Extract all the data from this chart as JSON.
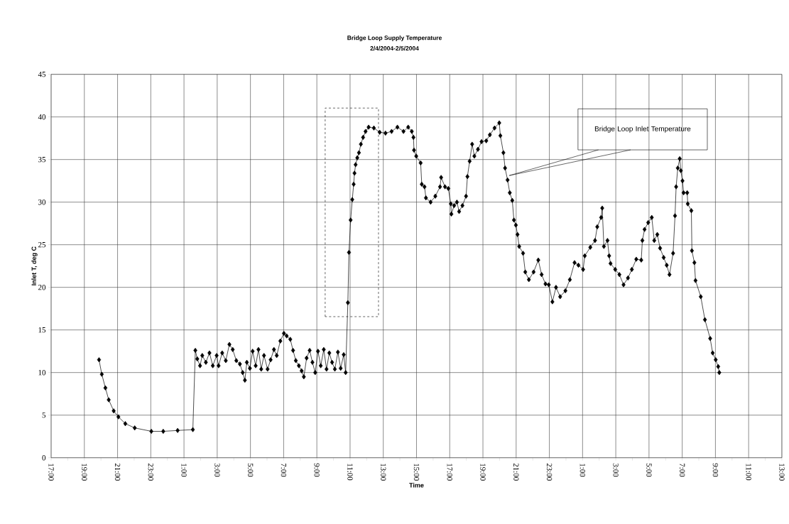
{
  "chart_data": {
    "type": "line",
    "title": "Bridge Loop Supply Temperature",
    "subtitle": "2/4/2004-2/5/2004",
    "xlabel": "Time",
    "ylabel": "Inlet T, deg C",
    "x": [
      "2004-02-04T19:53",
      "2004-02-04T20:03",
      "2004-02-04T20:16",
      "2004-02-04T20:28",
      "2004-02-04T20:46",
      "2004-02-04T21:03",
      "2004-02-04T21:28",
      "2004-02-04T22:02",
      "2004-02-04T23:02",
      "2004-02-04T23:45",
      "2004-02-05T00:37",
      "2004-02-05T01:32",
      "2004-02-05T01:41",
      "2004-02-05T01:48",
      "2004-02-05T01:58",
      "2004-02-05T02:06",
      "2004-02-05T02:19",
      "2004-02-05T02:32",
      "2004-02-05T02:44",
      "2004-02-05T02:58",
      "2004-02-05T03:05",
      "2004-02-05T03:18",
      "2004-02-05T03:31",
      "2004-02-05T03:44",
      "2004-02-05T03:56",
      "2004-02-05T04:09",
      "2004-02-05T04:22",
      "2004-02-05T04:32",
      "2004-02-05T04:40",
      "2004-02-05T04:47",
      "2004-02-05T04:58",
      "2004-02-05T05:08",
      "2004-02-05T05:19",
      "2004-02-05T05:29",
      "2004-02-05T05:39",
      "2004-02-05T05:49",
      "2004-02-05T06:02",
      "2004-02-05T06:13",
      "2004-02-05T06:25",
      "2004-02-05T06:35",
      "2004-02-05T06:48",
      "2004-02-05T07:01",
      "2004-02-05T07:11",
      "2004-02-05T07:24",
      "2004-02-05T07:34",
      "2004-02-05T07:44",
      "2004-02-05T07:55",
      "2004-02-05T08:05",
      "2004-02-05T08:13",
      "2004-02-05T08:23",
      "2004-02-05T08:34",
      "2004-02-05T08:44",
      "2004-02-05T08:54",
      "2004-02-05T09:04",
      "2004-02-05T09:14",
      "2004-02-05T09:25",
      "2004-02-05T09:35",
      "2004-02-05T09:45",
      "2004-02-05T09:55",
      "2004-02-05T10:05",
      "2004-02-05T10:16",
      "2004-02-05T10:26",
      "2004-02-05T10:37",
      "2004-02-05T10:44",
      "2004-02-05T10:52",
      "2004-02-05T10:56",
      "2004-02-05T11:02",
      "2004-02-05T11:08",
      "2004-02-05T11:13",
      "2004-02-05T11:16",
      "2004-02-05T11:20",
      "2004-02-05T11:26",
      "2004-02-05T11:32",
      "2004-02-05T11:39",
      "2004-02-05T11:47",
      "2004-02-05T11:56",
      "2004-02-05T12:07",
      "2004-02-05T12:26",
      "2004-02-05T12:47",
      "2004-02-05T13:08",
      "2004-02-05T13:30",
      "2004-02-05T13:51",
      "2004-02-05T14:13",
      "2004-02-05T14:30",
      "2004-02-05T14:43",
      "2004-02-05T14:49",
      "2004-02-05T14:51",
      "2004-02-05T14:59",
      "2004-02-05T15:15",
      "2004-02-05T15:19",
      "2004-02-05T15:29",
      "2004-02-05T15:34",
      "2004-02-05T15:51",
      "2004-02-05T16:08",
      "2004-02-05T16:25",
      "2004-02-05T16:29",
      "2004-02-05T16:43",
      "2004-02-05T16:55",
      "2004-02-05T17:04",
      "2004-02-05T17:06",
      "2004-02-05T17:16",
      "2004-02-05T17:26",
      "2004-02-05T17:34",
      "2004-02-05T17:46",
      "2004-02-05T17:59",
      "2004-02-05T18:04",
      "2004-02-05T18:12",
      "2004-02-05T18:21",
      "2004-02-05T18:29",
      "2004-02-05T18:42",
      "2004-02-05T18:55",
      "2004-02-05T19:12",
      "2004-02-05T19:25",
      "2004-02-05T19:42",
      "2004-02-05T19:59",
      "2004-02-05T20:03",
      "2004-02-05T20:14",
      "2004-02-05T20:20",
      "2004-02-05T20:29",
      "2004-02-05T20:37",
      "2004-02-05T20:46",
      "2004-02-05T20:52",
      "2004-02-05T20:59",
      "2004-02-05T21:05",
      "2004-02-05T21:11",
      "2004-02-05T21:25",
      "2004-02-05T21:33",
      "2004-02-05T21:46",
      "2004-02-05T22:03",
      "2004-02-05T22:20",
      "2004-02-05T22:32",
      "2004-02-05T22:46",
      "2004-02-05T22:58",
      "2004-02-05T23:11",
      "2004-02-05T23:24",
      "2004-02-05T23:39",
      "2004-02-05T23:58",
      "2004-02-06T00:14",
      "2004-02-06T00:31",
      "2004-02-06T00:45",
      "2004-02-06T01:02",
      "2004-02-06T01:08",
      "2004-02-06T01:28",
      "2004-02-06T01:45",
      "2004-02-06T01:53",
      "2004-02-06T02:07",
      "2004-02-06T02:11",
      "2004-02-06T02:17",
      "2004-02-06T02:30",
      "2004-02-06T02:36",
      "2004-02-06T02:41",
      "2004-02-06T02:58",
      "2004-02-06T03:13",
      "2004-02-06T03:28",
      "2004-02-06T03:44",
      "2004-02-06T03:58",
      "2004-02-06T04:14",
      "2004-02-06T04:32",
      "2004-02-06T04:36",
      "2004-02-06T04:44",
      "2004-02-06T04:57",
      "2004-02-06T05:10",
      "2004-02-06T05:19",
      "2004-02-06T05:30",
      "2004-02-06T05:40",
      "2004-02-06T05:53",
      "2004-02-06T06:04",
      "2004-02-06T06:14",
      "2004-02-06T06:27",
      "2004-02-06T06:34",
      "2004-02-06T06:38",
      "2004-02-06T06:44",
      "2004-02-06T06:51",
      "2004-02-06T06:55",
      "2004-02-06T07:01",
      "2004-02-06T07:05",
      "2004-02-06T07:18",
      "2004-02-06T07:20",
      "2004-02-06T07:33",
      "2004-02-06T07:35",
      "2004-02-06T07:44",
      "2004-02-06T07:48",
      "2004-02-06T08:07",
      "2004-02-06T08:22",
      "2004-02-06T08:41",
      "2004-02-06T08:50",
      "2004-02-06T09:01",
      "2004-02-06T09:10",
      "2004-02-06T09:14"
    ],
    "series": [
      {
        "color": "#000000",
        "values": [
          11.5,
          9.8,
          8.2,
          6.8,
          5.5,
          4.8,
          4.0,
          3.5,
          3.1,
          3.1,
          3.2,
          3.3,
          12.6,
          11.6,
          10.8,
          12.0,
          11.2,
          12.3,
          10.8,
          12.0,
          10.8,
          12.3,
          11.4,
          13.3,
          12.7,
          11.4,
          11.0,
          10.0,
          9.1,
          11.2,
          10.5,
          12.5,
          10.8,
          12.7,
          10.4,
          12.0,
          10.4,
          11.5,
          12.7,
          12.0,
          13.7,
          14.6,
          14.3,
          13.9,
          12.6,
          11.4,
          10.8,
          10.2,
          9.5,
          11.7,
          12.6,
          11.2,
          10.0,
          12.5,
          10.8,
          12.7,
          10.4,
          12.3,
          11.2,
          10.4,
          12.4,
          10.5,
          12.1,
          10.0,
          18.2,
          24.1,
          27.9,
          30.3,
          32.1,
          33.4,
          34.4,
          35.2,
          35.8,
          36.8,
          37.6,
          38.3,
          38.8,
          38.7,
          38.2,
          38.1,
          38.3,
          38.8,
          38.3,
          38.8,
          38.3,
          37.6,
          36.1,
          35.4,
          34.6,
          32.1,
          31.8,
          30.5,
          30.0,
          30.7,
          31.8,
          32.9,
          31.8,
          31.6,
          29.8,
          28.6,
          29.6,
          30.0,
          28.9,
          29.6,
          30.7,
          33.0,
          34.8,
          36.8,
          35.4,
          36.2,
          37.1,
          37.2,
          37.9,
          38.7,
          39.3,
          37.8,
          35.8,
          34.0,
          32.6,
          31.1,
          30.2,
          27.9,
          27.3,
          26.2,
          24.8,
          24.0,
          21.8,
          20.9,
          21.8,
          23.2,
          21.5,
          20.4,
          20.3,
          18.3,
          20.0,
          18.9,
          19.6,
          20.9,
          22.9,
          22.6,
          22.1,
          23.7,
          24.7,
          25.5,
          27.1,
          28.2,
          29.3,
          24.8,
          25.5,
          23.7,
          22.8,
          22.1,
          21.5,
          20.3,
          21.1,
          22.1,
          23.3,
          23.2,
          25.5,
          26.8,
          27.6,
          28.2,
          25.5,
          26.2,
          24.6,
          23.5,
          22.6,
          21.5,
          24.0,
          28.4,
          31.8,
          34.0,
          35.1,
          33.7,
          32.5,
          31.1,
          31.1,
          29.8,
          29.0,
          24.3,
          22.9,
          20.8,
          18.9,
          16.2,
          14.0,
          12.3,
          11.5,
          10.7,
          10.0
        ]
      }
    ],
    "marker": "diamond",
    "line_style": "solid",
    "grid": true,
    "xlim": [
      "2004-02-04T17:00",
      "2004-02-06T13:00"
    ],
    "xticks": [
      {
        "value": "2004-02-04T17:00",
        "label": "17:00"
      },
      {
        "value": "2004-02-04T18:00",
        "label": null
      },
      {
        "value": "2004-02-04T19:00",
        "label": "19:00"
      },
      {
        "value": "2004-02-04T20:00",
        "label": null
      },
      {
        "value": "2004-02-04T21:00",
        "label": "21:00"
      },
      {
        "value": "2004-02-04T22:00",
        "label": null
      },
      {
        "value": "2004-02-04T23:00",
        "label": "23:00"
      },
      {
        "value": "2004-02-05T00:00",
        "label": null
      },
      {
        "value": "2004-02-05T01:00",
        "label": "1:00"
      },
      {
        "value": "2004-02-05T02:00",
        "label": null
      },
      {
        "value": "2004-02-05T03:00",
        "label": "3:00"
      },
      {
        "value": "2004-02-05T04:00",
        "label": null
      },
      {
        "value": "2004-02-05T05:00",
        "label": "5:00"
      },
      {
        "value": "2004-02-05T06:00",
        "label": null
      },
      {
        "value": "2004-02-05T07:00",
        "label": "7:00"
      },
      {
        "value": "2004-02-05T08:00",
        "label": null
      },
      {
        "value": "2004-02-05T09:00",
        "label": "9:00"
      },
      {
        "value": "2004-02-05T10:00",
        "label": null
      },
      {
        "value": "2004-02-05T11:00",
        "label": "11:00"
      },
      {
        "value": "2004-02-05T12:00",
        "label": null
      },
      {
        "value": "2004-02-05T13:00",
        "label": "13:00"
      },
      {
        "value": "2004-02-05T14:00",
        "label": null
      },
      {
        "value": "2004-02-05T15:00",
        "label": "15:00"
      },
      {
        "value": "2004-02-05T16:00",
        "label": null
      },
      {
        "value": "2004-02-05T17:00",
        "label": "17:00"
      },
      {
        "value": "2004-02-05T18:00",
        "label": null
      },
      {
        "value": "2004-02-05T19:00",
        "label": "19:00"
      },
      {
        "value": "2004-02-05T20:00",
        "label": null
      },
      {
        "value": "2004-02-05T21:00",
        "label": "21:00"
      },
      {
        "value": "2004-02-05T22:00",
        "label": null
      },
      {
        "value": "2004-02-05T23:00",
        "label": "23:00"
      },
      {
        "value": "2004-02-06T00:00",
        "label": null
      },
      {
        "value": "2004-02-06T01:00",
        "label": "1:00"
      },
      {
        "value": "2004-02-06T02:00",
        "label": null
      },
      {
        "value": "2004-02-06T03:00",
        "label": "3:00"
      },
      {
        "value": "2004-02-06T04:00",
        "label": null
      },
      {
        "value": "2004-02-06T05:00",
        "label": "5:00"
      },
      {
        "value": "2004-02-06T06:00",
        "label": null
      },
      {
        "value": "2004-02-06T07:00",
        "label": "7:00"
      },
      {
        "value": "2004-02-06T08:00",
        "label": null
      },
      {
        "value": "2004-02-06T09:00",
        "label": "9:00"
      },
      {
        "value": "2004-02-06T10:00",
        "label": null
      },
      {
        "value": "2004-02-06T11:00",
        "label": "11:00"
      },
      {
        "value": "2004-02-06T12:00",
        "label": null
      },
      {
        "value": "2004-02-06T13:00",
        "label": "13:00"
      }
    ],
    "ylim": [
      0,
      45
    ],
    "yticks": [
      0,
      5,
      10,
      15,
      20,
      25,
      30,
      35,
      40,
      45
    ],
    "annotations": [
      "Bridge Loop Inlet Temperature"
    ]
  }
}
